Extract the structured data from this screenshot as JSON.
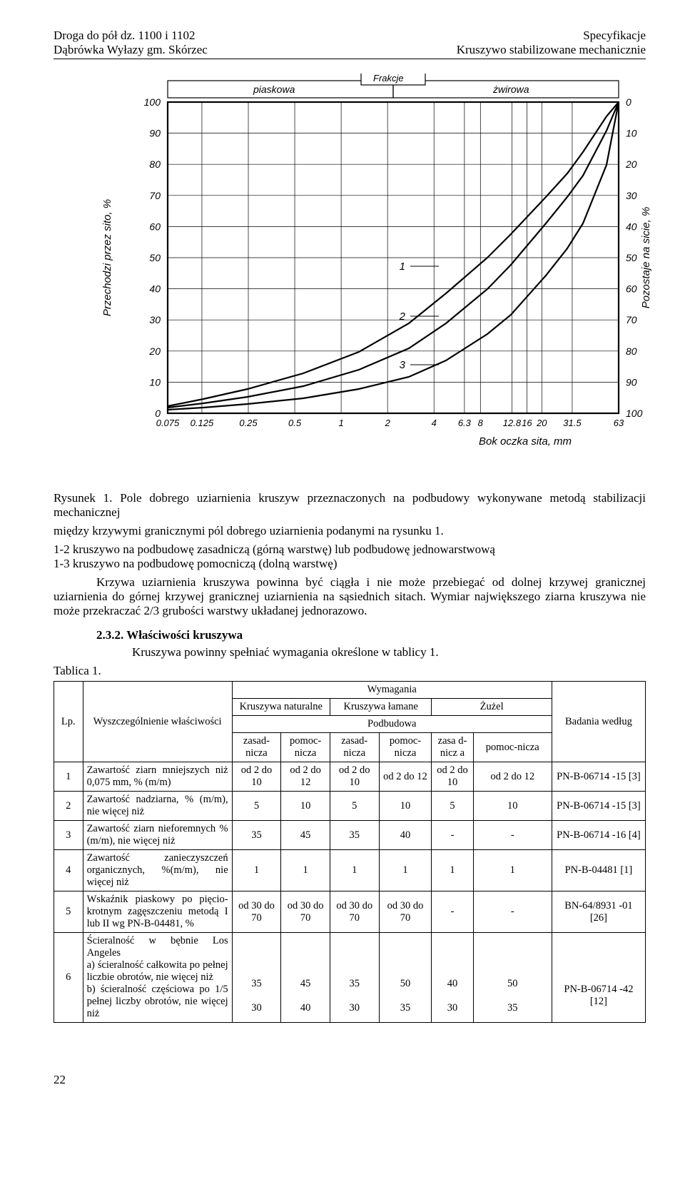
{
  "header": {
    "left1": "Droga do pół dz. 1100 i 1102",
    "left2": "Dąbrówka Wyłazy gm. Skórzec",
    "right1": "Specyfikacje",
    "right2": "Kruszywo stabilizowane mechanicznie"
  },
  "chart": {
    "top_label_left": "piaskowa",
    "top_label_right": "żwirowa",
    "top_group": "Frakcje",
    "y_left_label": "Przechodzi  przez  sito, %",
    "y_right_label": "Pozostaje  na  sicie, %",
    "x_label": "Bok oczka sita, mm",
    "y_left_ticks": [
      "100",
      "90",
      "80",
      "70",
      "60",
      "50",
      "40",
      "30",
      "20",
      "10",
      "0"
    ],
    "y_right_ticks": [
      "0",
      "10",
      "20",
      "30",
      "40",
      "50",
      "60",
      "70",
      "80",
      "90",
      "100"
    ],
    "x_ticks": [
      "0.075",
      "0.125",
      "0.25",
      "0.5",
      "1",
      "2",
      "4",
      "6.3",
      "8",
      "12.8",
      "16",
      "20",
      "31.5",
      "63"
    ],
    "curves": {
      "line_color": "#000000",
      "curve1": {
        "label": "1",
        "pts": [
          [
            120,
            466
          ],
          [
            170,
            456
          ],
          [
            232,
            442
          ],
          [
            310,
            420
          ],
          [
            388,
            390
          ],
          [
            458,
            350
          ],
          [
            510,
            308
          ],
          [
            568,
            258
          ],
          [
            601,
            225
          ],
          [
            650,
            173
          ],
          [
            680,
            140
          ],
          [
            702,
            110
          ],
          [
            735,
            60
          ],
          [
            752,
            40
          ]
        ]
      },
      "curve2": {
        "label": "2",
        "pts": [
          [
            120,
            468
          ],
          [
            170,
            462
          ],
          [
            232,
            453
          ],
          [
            310,
            438
          ],
          [
            388,
            415
          ],
          [
            458,
            385
          ],
          [
            510,
            350
          ],
          [
            568,
            302
          ],
          [
            601,
            268
          ],
          [
            650,
            210
          ],
          [
            680,
            173
          ],
          [
            702,
            143
          ],
          [
            735,
            80
          ],
          [
            752,
            40
          ]
        ]
      },
      "curve3": {
        "label": "3",
        "pts": [
          [
            120,
            471
          ],
          [
            170,
            468
          ],
          [
            232,
            463
          ],
          [
            310,
            455
          ],
          [
            388,
            442
          ],
          [
            458,
            425
          ],
          [
            510,
            402
          ],
          [
            568,
            365
          ],
          [
            601,
            338
          ],
          [
            650,
            283
          ],
          [
            680,
            245
          ],
          [
            702,
            210
          ],
          [
            735,
            128
          ],
          [
            752,
            40
          ]
        ]
      }
    }
  },
  "caption": {
    "lead": "Rysunek 1.",
    "text": "Pole dobrego uziarnienia kruszyw przeznaczonych na podbudowy wykonywane metodą stabilizacji mechanicznej",
    "between": "między krzywymi granicznymi pól dobrego uziarnienia podanymi na rysunku 1.",
    "r12": "1-2 kruszywo na podbudowę zasadniczą (górną warstwę) lub podbudowę jednowarstwową",
    "r13": "1-3 kruszywo na podbudowę pomocniczą (dolną warstwę)",
    "krzywa": "Krzywa uziarnienia kruszywa powinna być ciągła i nie może przebiegać od dolnej krzywej granicznej uziarnienia do górnej krzywej granicznej uziarnienia na sąsiednich sitach. Wymiar największego ziarna kruszywa nie może przekraczać 2/3 grubości warstwy układanej jednorazowo."
  },
  "section232": {
    "title": "2.3.2. Właściwości kruszywa",
    "body": "Kruszywa powinny spełniać wymagania określone w tablicy 1."
  },
  "tablica_label": "Tablica 1.",
  "table": {
    "head": {
      "lp": "Lp.",
      "wysz": "Wyszczególnienie właściwości",
      "wym": "Wymagania",
      "nat": "Kruszywa naturalne",
      "lam": "Kruszywa łamane",
      "zuzel": "Żużel",
      "pod": "Podbudowa",
      "zas": "zasad-nicza",
      "pom": "pomoc-nicza",
      "zas2": "zasa d-nicz a",
      "pom2": "pomoc-nicza",
      "badania": "Badania według"
    },
    "rows": [
      {
        "n": "1",
        "name": "Zawartość ziarn mniejszych niż 0,075 mm, % (m/m)",
        "v": [
          "od 2 do 10",
          "od 2 do 12",
          "od 2 do 10",
          "od 2 do 12",
          "od 2 do 10",
          "od 2         do 12"
        ],
        "ref": "PN-B-06714 -15 [3]"
      },
      {
        "n": "2",
        "name": "Zawartość nadziarna, % (m/m), nie więcej niż",
        "v": [
          "5",
          "10",
          "5",
          "10",
          "5",
          "10"
        ],
        "ref": "PN-B-06714 -15 [3]"
      },
      {
        "n": "3",
        "name": "Zawartość ziarn nieforemnych %(m/m), nie więcej niż",
        "v": [
          "35",
          "45",
          "35",
          "40",
          "-",
          "-"
        ],
        "ref": "PN-B-06714 -16 [4]"
      },
      {
        "n": "4",
        "name": "Zawartość zanieczyszczeń organicznych, %(m/m), nie więcej niż",
        "v": [
          "1",
          "1",
          "1",
          "1",
          "1",
          "1"
        ],
        "ref": "PN-B-04481 [1]"
      },
      {
        "n": "5",
        "name": "Wskaźnik piaskowy po pięcio-krotnym zagęszczeniu metodą I lub II wg PN-B-04481, %",
        "v": [
          "od 30 do 70",
          "od 30 do 70",
          "od 30 do 70",
          "od 30 do 70",
          "-",
          "-"
        ],
        "ref": "BN-64/8931 -01 [26]"
      },
      {
        "n": "6",
        "name": "Ścieralność w bębnie Los Angeles\na) ścieralność całkowita po pełnej liczbie obrotów, nie więcej niż\nb) ścieralność częściowa po 1/5 pełnej liczby obrotów, nie więcej niż",
        "a": [
          "35",
          "45",
          "35",
          "50",
          "40",
          "50"
        ],
        "b": [
          "30",
          "40",
          "30",
          "35",
          "30",
          "35"
        ],
        "ref": "PN-B-06714 -42 [12]"
      }
    ]
  },
  "page_number": "22"
}
